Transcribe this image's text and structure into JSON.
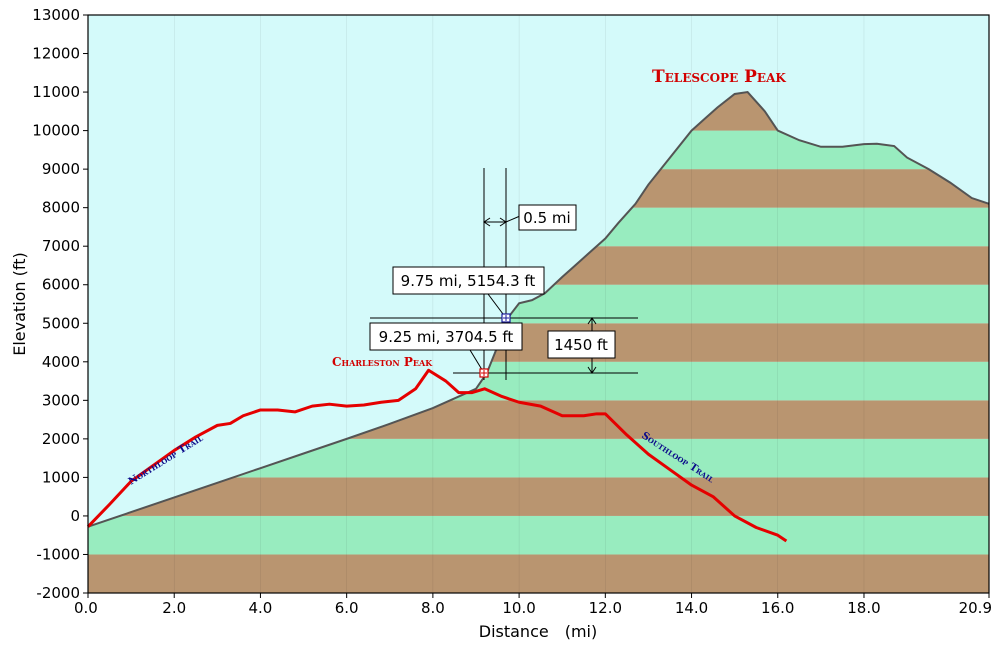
{
  "chart_data": {
    "type": "area",
    "xlabel": "Distance　(mi)",
    "ylabel": "Elevation (ft)",
    "xlim": [
      0,
      20.9
    ],
    "ylim": [
      -2000,
      13000
    ],
    "x_ticks": [
      "0.0",
      "2.0",
      "4.0",
      "6.0",
      "8.0",
      "10.0",
      "12.0",
      "14.0",
      "16.0",
      "18.0",
      "20.9"
    ],
    "x_tick_values": [
      0,
      2,
      4,
      6,
      8,
      10,
      12,
      14,
      16,
      18,
      20.9
    ],
    "y_ticks": [
      "13000",
      "12000",
      "11000",
      "10000",
      "9000",
      "8000",
      "7000",
      "6000",
      "5000",
      "4000",
      "3000",
      "2000",
      "1000",
      "0",
      "-1000",
      "-2000"
    ],
    "y_tick_values": [
      13000,
      12000,
      11000,
      10000,
      9000,
      8000,
      7000,
      6000,
      5000,
      4000,
      3000,
      2000,
      1000,
      0,
      -1000,
      -2000
    ],
    "grid": true,
    "band_colors": [
      "#b99570",
      "#98ecbf"
    ],
    "background_color": "#d4fafa",
    "series": [
      {
        "color": "#545454",
        "fill": true,
        "x": [
          0.0,
          1.0,
          2.0,
          3.0,
          4.0,
          5.0,
          6.0,
          7.0,
          8.0,
          9.0,
          9.25,
          9.5,
          9.75,
          10.0,
          10.3,
          10.6,
          11.0,
          11.3,
          11.6,
          12.0,
          12.3,
          12.7,
          13.0,
          13.5,
          14.0,
          14.3,
          14.6,
          15.0,
          15.3,
          15.7,
          16.0,
          16.5,
          17.0,
          17.5,
          18.0,
          18.3,
          18.7,
          19.0,
          19.5,
          20.0,
          20.5,
          20.9
        ],
        "y": [
          -280,
          100,
          480,
          860,
          1240,
          1620,
          2000,
          2390,
          2800,
          3300,
          3704.5,
          4400,
          5154.3,
          5520,
          5600,
          5780,
          6200,
          6500,
          6800,
          7200,
          7600,
          8100,
          8600,
          9300,
          10000,
          10300,
          10600,
          10950,
          11000,
          10500,
          10000,
          9750,
          9580,
          9580,
          9650,
          9660,
          9600,
          9300,
          9000,
          8650,
          8250,
          8100
        ]
      },
      {
        "color": "#e50000",
        "fill": false,
        "x": [
          0.0,
          0.5,
          1.0,
          1.5,
          2.0,
          2.5,
          3.0,
          3.3,
          3.6,
          4.0,
          4.4,
          4.8,
          5.2,
          5.6,
          6.0,
          6.4,
          6.8,
          7.2,
          7.6,
          7.9,
          8.3,
          8.6,
          8.9,
          9.2,
          9.6,
          10.0,
          10.5,
          11.0,
          11.5,
          11.8,
          12.0,
          12.5,
          13.0,
          13.5,
          14.0,
          14.5,
          15.0,
          15.5,
          16.0,
          16.2
        ],
        "y": [
          -280,
          300,
          900,
          1300,
          1700,
          2050,
          2350,
          2400,
          2600,
          2750,
          2750,
          2700,
          2850,
          2900,
          2850,
          2880,
          2950,
          3000,
          3300,
          3780,
          3500,
          3200,
          3200,
          3300,
          3100,
          2950,
          2850,
          2600,
          2600,
          2650,
          2650,
          2100,
          1600,
          1200,
          800,
          500,
          0,
          -300,
          -500,
          -650
        ]
      }
    ],
    "annotations": {
      "peak_title": "Telescope Peak",
      "charleston_label": "Charleston Peak",
      "north_trail": "Northloop Trail",
      "south_trail": "Southloop Trail",
      "point1_label": "9.25 mi, 3704.5 ft",
      "point2_label": "9.75 mi, 5154.3 ft",
      "dx_label": "0.5 mi",
      "dy_label": "1450 ft"
    },
    "colors": {
      "trail_red": "#e50000",
      "trail_label_blue": "#0b0b8a",
      "peak_label_red": "#d20000"
    }
  }
}
